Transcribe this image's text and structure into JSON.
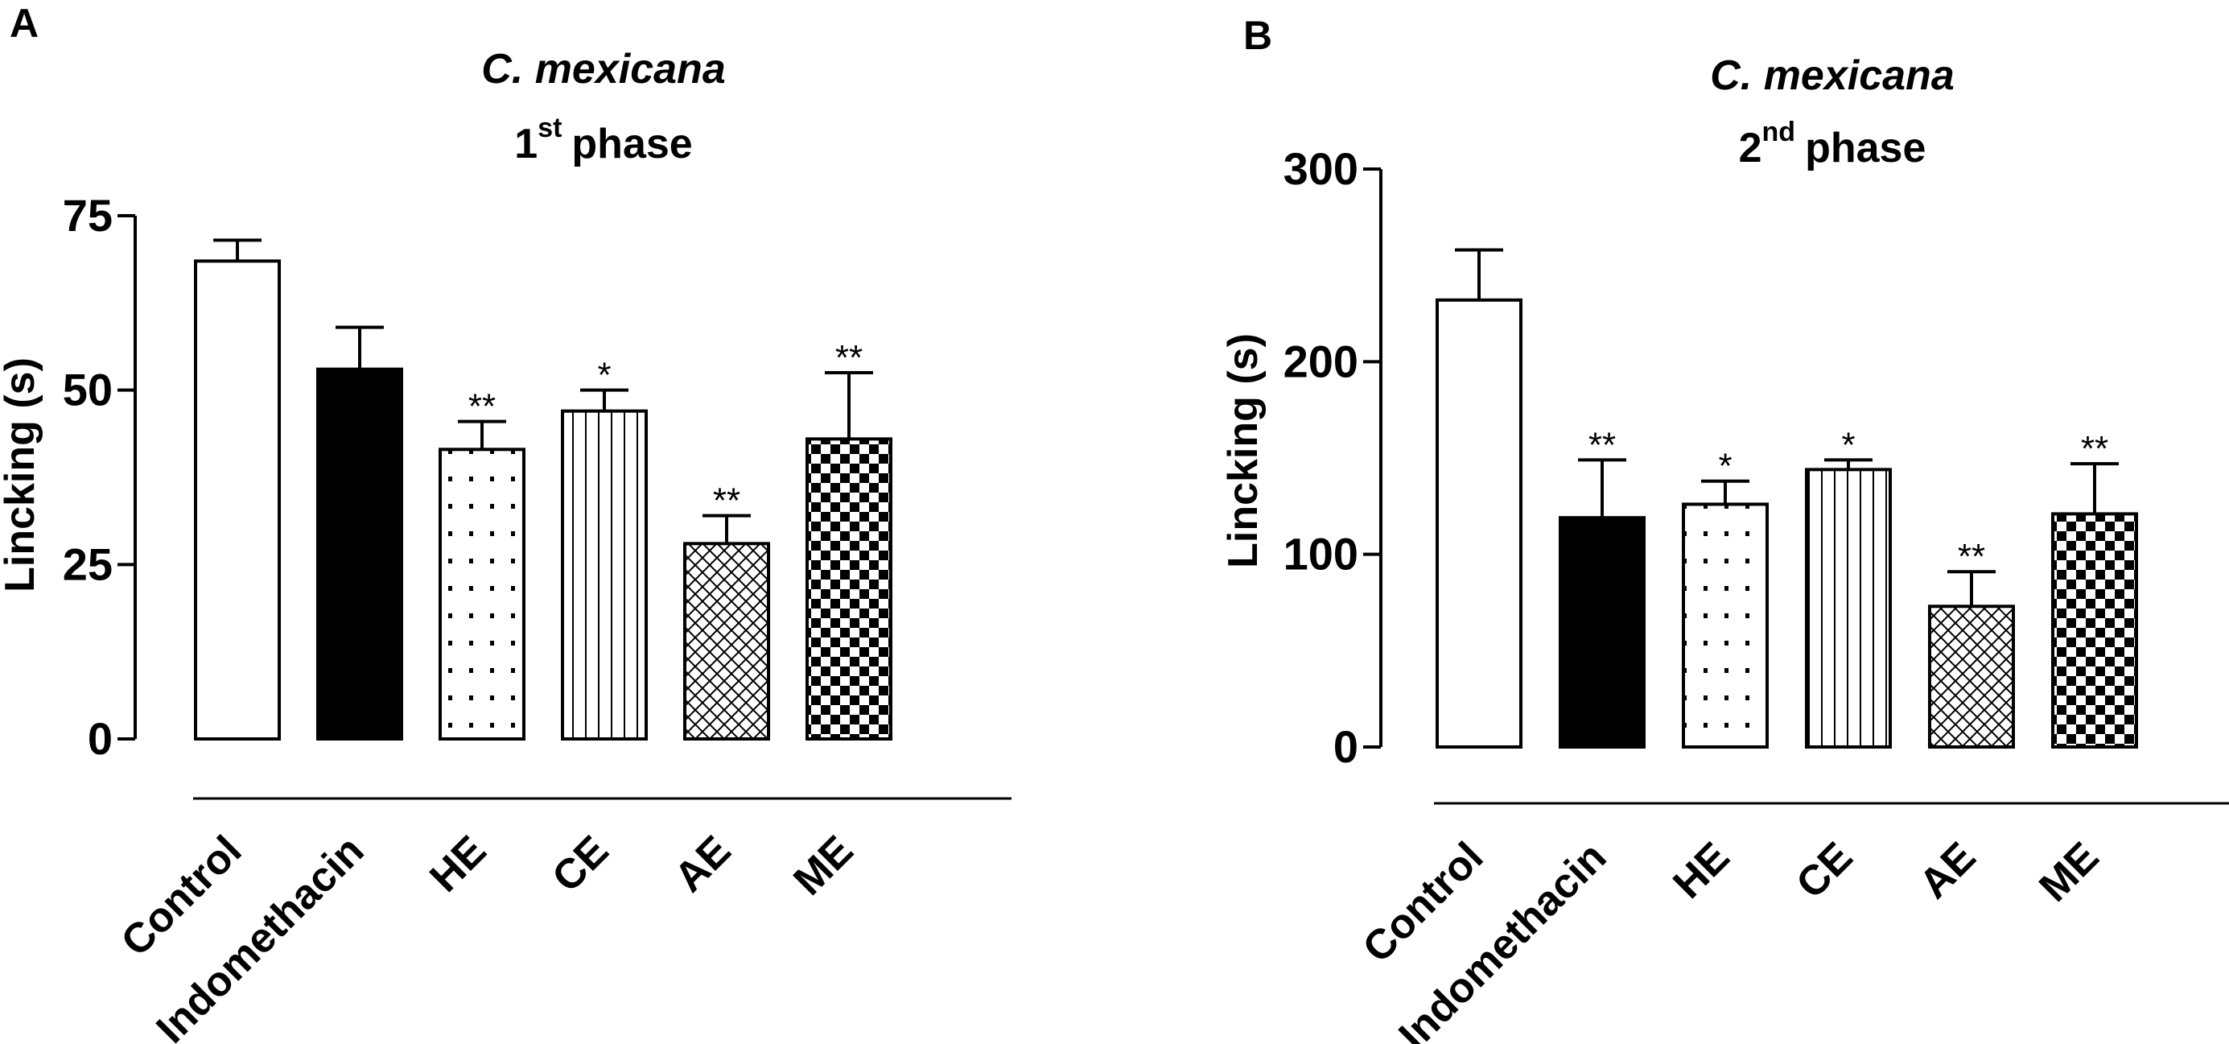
{
  "chart_data": [
    {
      "type": "bar",
      "panel": "A",
      "title_species": "C. mexicana",
      "title_ordinal": "1",
      "title_sup": "st",
      "title_phase": "phase",
      "ylabel": "Lincking (s)",
      "xlabel": "",
      "ylim": [
        0,
        75
      ],
      "yticks": [
        0,
        25,
        50,
        75
      ],
      "grid": false,
      "categories": [
        "Control",
        "Indomethacin",
        "HE",
        "CE",
        "AE",
        "ME"
      ],
      "values": [
        68.5,
        53,
        41.5,
        47,
        28,
        43
      ],
      "errors": [
        3,
        6,
        4,
        3,
        4,
        9.5
      ],
      "significance": [
        "",
        "",
        "**",
        "*",
        "**",
        "**"
      ],
      "patterns": [
        "white",
        "black",
        "dots",
        "vlines",
        "crosshatch",
        "checker"
      ]
    },
    {
      "type": "bar",
      "panel": "B",
      "title_species": "C. mexicana",
      "title_ordinal": "2",
      "title_sup": "nd",
      "title_phase": "phase",
      "ylabel": "Lincking (s)",
      "xlabel": "",
      "ylim": [
        0,
        300
      ],
      "yticks": [
        0,
        100,
        200,
        300
      ],
      "grid": false,
      "categories": [
        "Control",
        "Indomethacin",
        "HE",
        "CE",
        "AE",
        "ME"
      ],
      "values": [
        232,
        119,
        126,
        144,
        73,
        121
      ],
      "errors": [
        26,
        30,
        12,
        5,
        18,
        26
      ],
      "significance": [
        "",
        "**",
        "*",
        "*",
        "**",
        "**"
      ],
      "patterns": [
        "white",
        "black",
        "dots",
        "vlines",
        "crosshatch",
        "checker"
      ]
    }
  ]
}
